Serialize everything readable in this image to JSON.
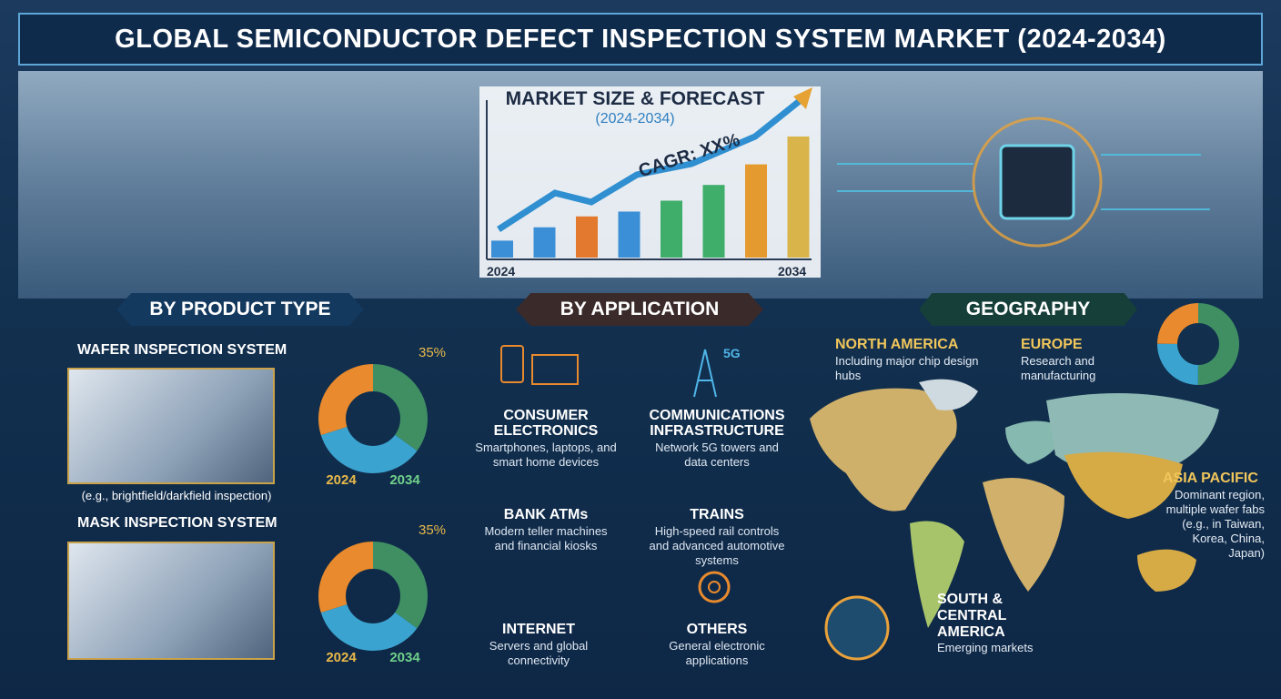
{
  "header": {
    "title": "GLOBAL SEMICONDUCTOR DEFECT INSPECTION SYSTEM MARKET (2024-2034)"
  },
  "forecast": {
    "title": "MARKET SIZE & FORECAST",
    "subtitle": "(2024-2034)",
    "cagr": "CAGR: XX%",
    "start": "2024",
    "end": "2034",
    "bars": [
      14,
      25,
      34,
      38,
      47,
      60,
      77,
      100
    ],
    "bar_colors": [
      "#3b8fd6",
      "#3b8fd6",
      "#e2792f",
      "#3b8fd6",
      "#3fae6a",
      "#3fae6a",
      "#e59a2f",
      "#d9b44a"
    ]
  },
  "product_type": {
    "heading": "BY PRODUCT TYPE",
    "items": [
      {
        "name": "WAFER INSPECTION SYSTEM",
        "caption": "(e.g., brightfield/darkfield inspection)",
        "donut": {
          "segments": [
            35,
            35,
            30
          ],
          "highlight_label": "35%",
          "labels": [
            "2024",
            "2034"
          ]
        }
      },
      {
        "name": "MASK INSPECTION SYSTEM",
        "donut": {
          "segments": [
            35,
            35,
            30
          ],
          "highlight_label": "35%",
          "labels": [
            "2024",
            "2034"
          ]
        }
      }
    ],
    "segment_colors": [
      "#3f8f63",
      "#3ba3cf",
      "#e88a2d"
    ]
  },
  "application": {
    "heading": "BY APPLICATION",
    "items": [
      {
        "name": "CONSUMER ELECTRONICS",
        "desc": "Smartphones, laptops, and smart home devices"
      },
      {
        "name": "COMMUNICATIONS INFRASTRUCTURE",
        "desc": "Network 5G towers and data centers"
      },
      {
        "name": "BANK ATMs",
        "desc": "Modern teller machines and financial kiosks"
      },
      {
        "name": "TRAINS",
        "desc": "High-speed rail controls and advanced automotive systems"
      },
      {
        "name": "INTERNET",
        "desc": "Servers and global connectivity"
      },
      {
        "name": "OTHERS",
        "desc": "General electronic applications"
      }
    ],
    "icon_5g": "5G"
  },
  "geography": {
    "heading": "GEOGRAPHY",
    "donut": [
      50,
      25,
      25
    ],
    "regions": [
      {
        "name": "NORTH AMERICA",
        "desc": "Including major chip design hubs"
      },
      {
        "name": "EUROPE",
        "desc": "Research and manufacturing"
      },
      {
        "name": "ASIA PACIFIC",
        "desc": "Dominant region, multiple wafer fabs (e.g., in Taiwan, Korea, China, Japan)"
      },
      {
        "name": "SOUTH & CENTRAL AMERICA",
        "desc": "Emerging markets"
      }
    ]
  }
}
